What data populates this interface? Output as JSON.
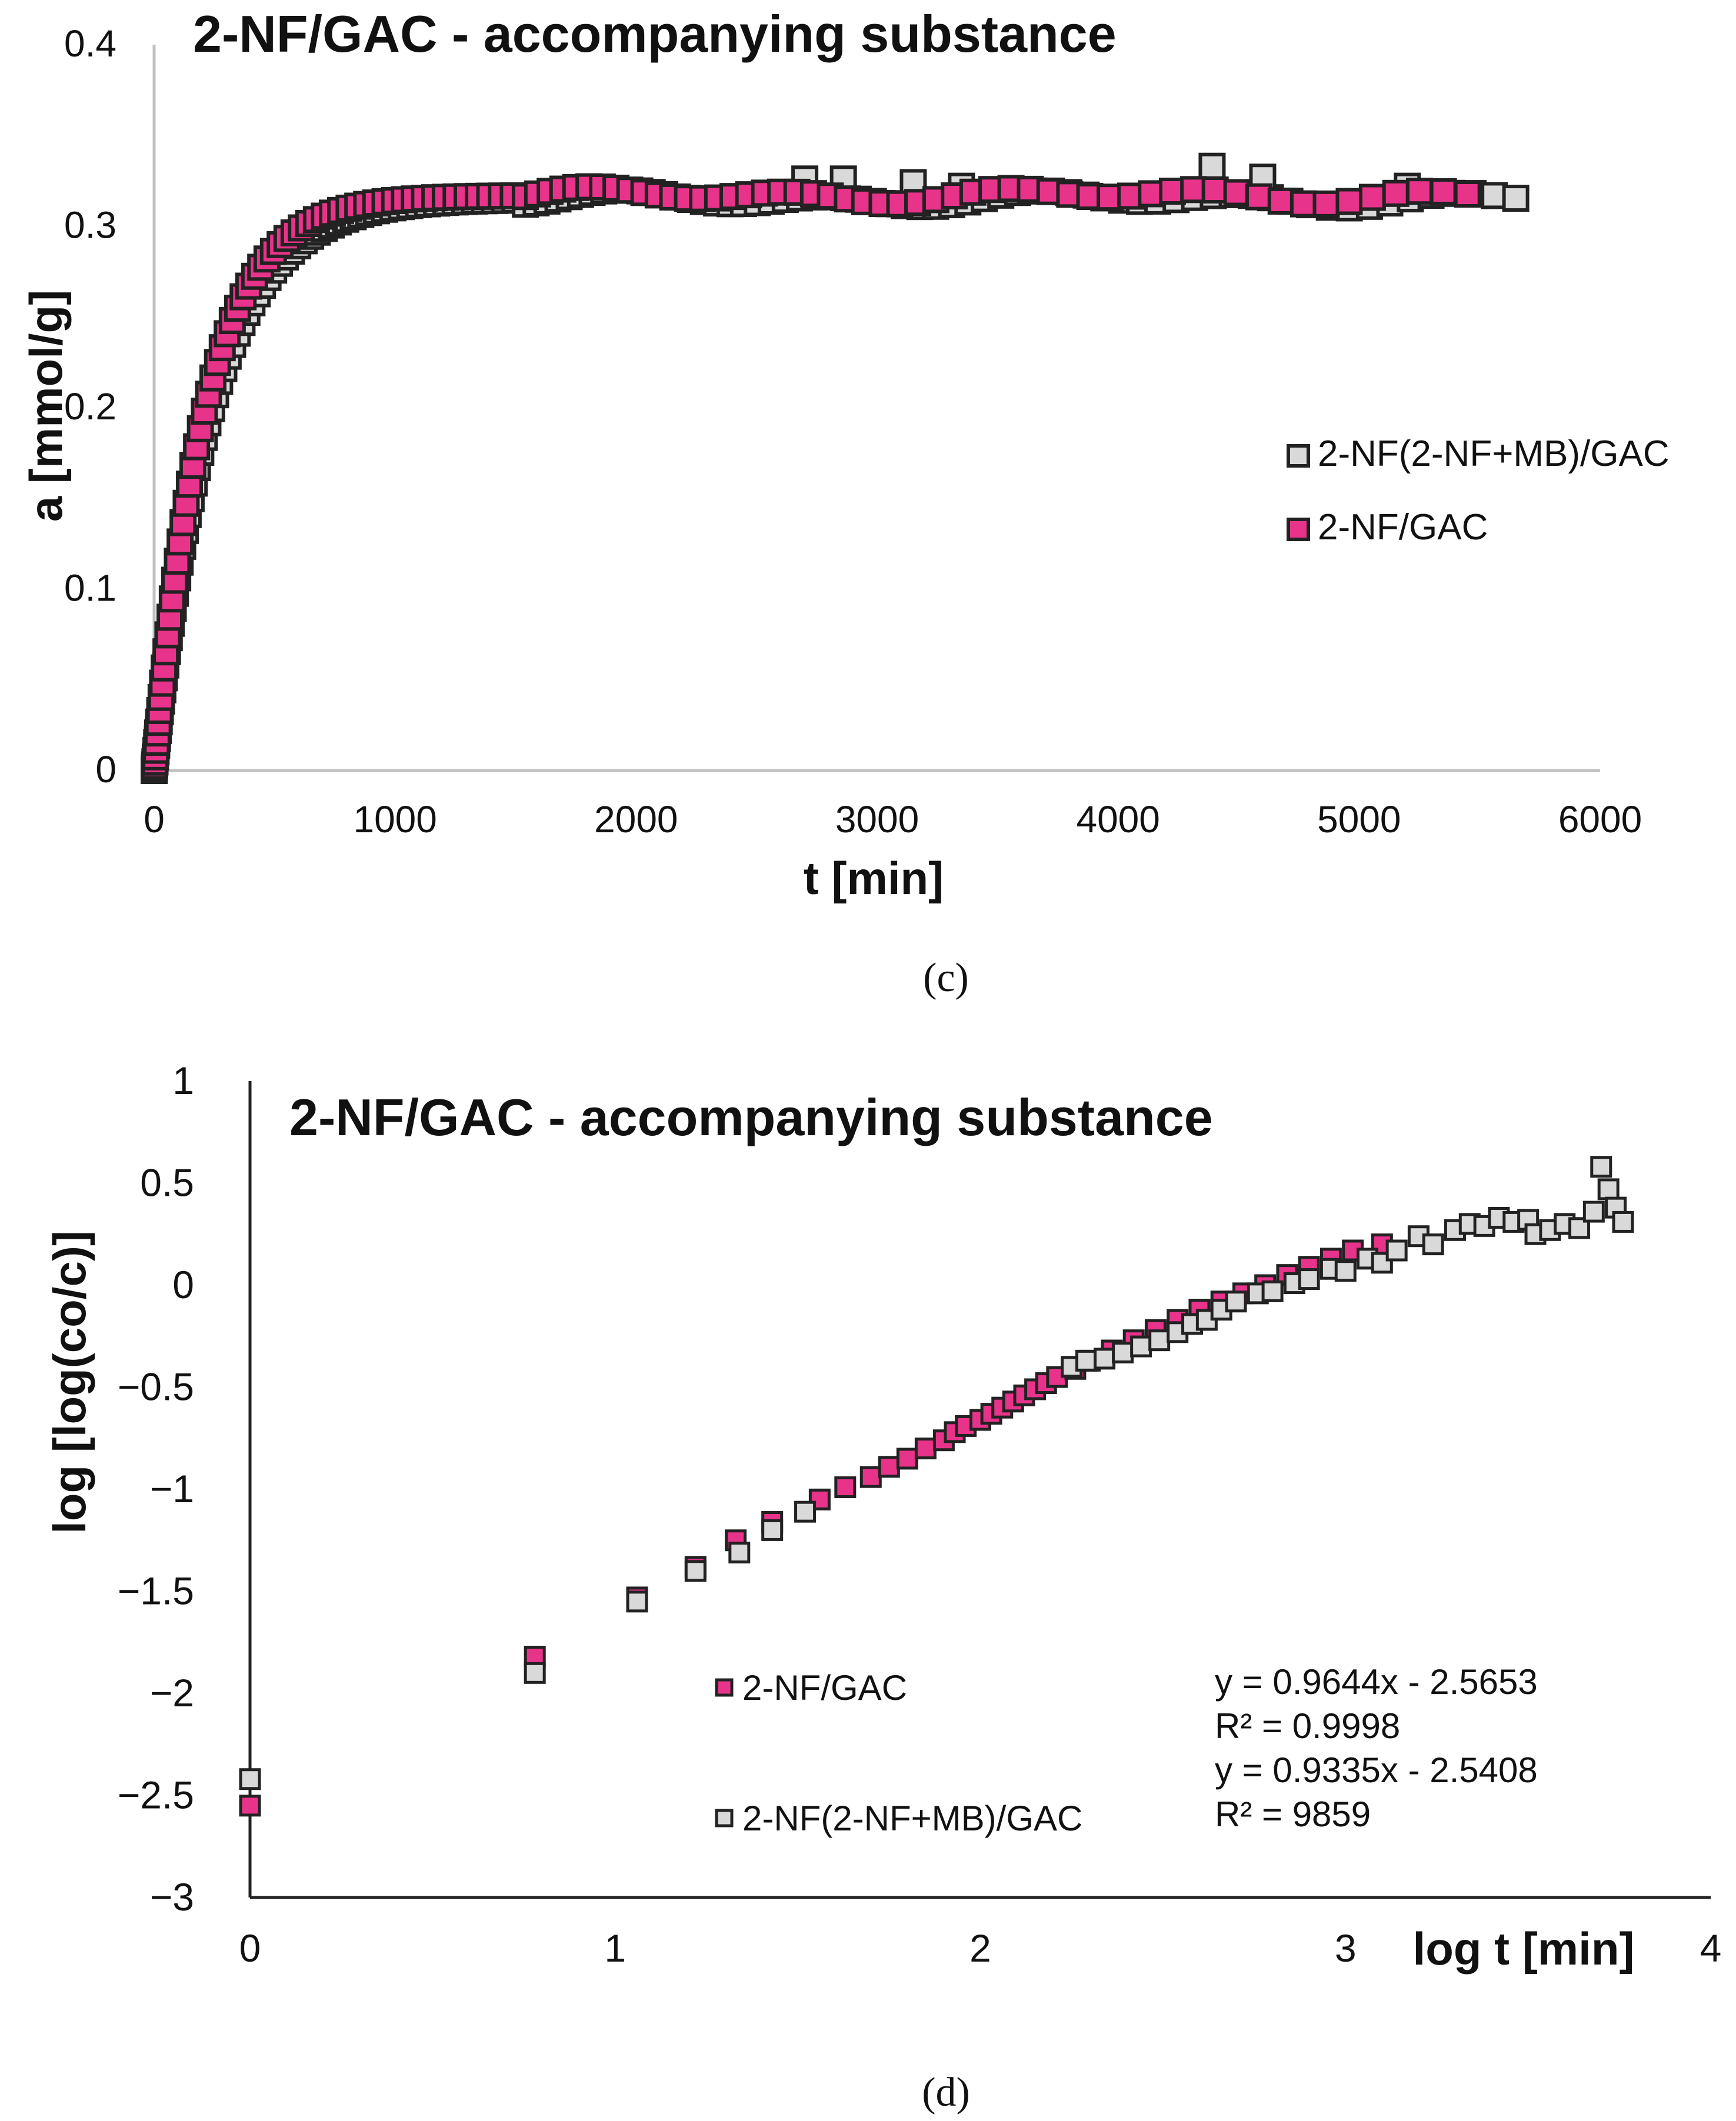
{
  "panels": [
    {
      "caption": "(c)",
      "chart_data": {
        "type": "scatter",
        "title": "2-NF/GAC - accompanying substance",
        "xlabel": "t [min]",
        "ylabel": "a [mmol/g]",
        "xlim": [
          0,
          6000
        ],
        "ylim": [
          0,
          0.4
        ],
        "xticks": [
          0,
          1000,
          2000,
          3000,
          4000,
          5000,
          6000
        ],
        "yticks": [
          0,
          0.1,
          0.2,
          0.3,
          0.4
        ],
        "xtick_labels": [
          "0",
          "1000",
          "2000",
          "3000",
          "4000",
          "5000",
          "6000"
        ],
        "ytick_labels": [
          "0",
          "0.1",
          "0.2",
          "0.3",
          "0.4"
        ],
        "legend": {
          "position": "right",
          "entries": [
            "2-NF(2-NF+MB)/GAC",
            "2-NF/GAC"
          ]
        },
        "series": [
          {
            "name": "2-NF(2-NF+MB)/GAC",
            "color": "#d9d9d9",
            "model": {
              "kind": "saturation",
              "qmax": 0.315,
              "k": 0.0042,
              "tmax": 5650,
              "points": 140
            },
            "extra_points": [
              [
                2700,
                0.326
              ],
              [
                2860,
                0.326
              ],
              [
                4390,
                0.333
              ],
              [
                4600,
                0.327
              ],
              [
                3150,
                0.324
              ],
              [
                3350,
                0.322
              ],
              [
                5200,
                0.322
              ]
            ]
          },
          {
            "name": "2-NF/GAC",
            "color": "#e8338a",
            "model": {
              "kind": "saturation",
              "qmax": 0.317,
              "k": 0.0047,
              "tmax": 5450,
              "points": 120
            },
            "extra_points": []
          }
        ]
      }
    },
    {
      "caption": "(d)",
      "chart_data": {
        "type": "scatter",
        "title": "2-NF/GAC - accompanying substance",
        "xlabel": "log t [min]",
        "ylabel": "log [log(co/c)]",
        "xlim": [
          0,
          4
        ],
        "ylim": [
          -3,
          1
        ],
        "xticks": [
          0,
          1,
          2,
          3,
          4
        ],
        "yticks": [
          -3,
          -2.5,
          -2,
          -1.5,
          -1,
          -0.5,
          0,
          0.5,
          1
        ],
        "xtick_labels": [
          "0",
          "1",
          "2",
          "3",
          "4"
        ],
        "ytick_labels": [
          "−3",
          "−2.5",
          "−2",
          "−1.5",
          "−1",
          "−0.5",
          "0",
          "0.5",
          "1"
        ],
        "legend": {
          "position": "lower-center",
          "entries": [
            "2-NF/GAC",
            "2-NF(2-NF+MB)/GAC"
          ]
        },
        "annotations": [
          "y = 0.9644x - 2.5653",
          "R² = 0.9998",
          "y = 0.9335x - 2.5408",
          "R² = 9859"
        ],
        "series": [
          {
            "name": "2-NF/GAC",
            "color": "#e8338a",
            "points": [
              [
                0,
                -2.55
              ],
              [
                0.78,
                -1.82
              ],
              [
                1.06,
                -1.53
              ],
              [
                1.22,
                -1.38
              ],
              [
                1.33,
                -1.25
              ],
              [
                1.43,
                -1.16
              ],
              [
                1.56,
                -1.05
              ],
              [
                1.63,
                -0.99
              ],
              [
                1.7,
                -0.94
              ],
              [
                1.75,
                -0.89
              ],
              [
                1.8,
                -0.85
              ],
              [
                1.85,
                -0.8
              ],
              [
                1.9,
                -0.76
              ],
              [
                1.93,
                -0.72
              ],
              [
                1.96,
                -0.69
              ],
              [
                2.0,
                -0.66
              ],
              [
                2.03,
                -0.63
              ],
              [
                2.06,
                -0.6
              ],
              [
                2.09,
                -0.57
              ],
              [
                2.12,
                -0.54
              ],
              [
                2.15,
                -0.51
              ],
              [
                2.18,
                -0.48
              ],
              [
                2.21,
                -0.45
              ],
              [
                2.26,
                -0.41
              ],
              [
                2.3,
                -0.37
              ],
              [
                2.36,
                -0.32
              ],
              [
                2.42,
                -0.27
              ],
              [
                2.48,
                -0.22
              ],
              [
                2.54,
                -0.17
              ],
              [
                2.6,
                -0.12
              ],
              [
                2.66,
                -0.08
              ],
              [
                2.72,
                -0.04
              ],
              [
                2.78,
                0.0
              ],
              [
                2.84,
                0.05
              ],
              [
                2.9,
                0.09
              ],
              [
                2.96,
                0.13
              ],
              [
                3.02,
                0.17
              ],
              [
                3.1,
                0.2
              ]
            ]
          },
          {
            "name": "2-NF(2-NF+MB)/GAC",
            "color": "#d9d9d9",
            "points": [
              [
                0,
                -2.42
              ],
              [
                0.78,
                -1.9
              ],
              [
                1.06,
                -1.55
              ],
              [
                1.22,
                -1.4
              ],
              [
                1.34,
                -1.31
              ],
              [
                1.43,
                -1.2
              ],
              [
                1.52,
                -1.11
              ],
              [
                2.25,
                -0.4
              ],
              [
                2.29,
                -0.37
              ],
              [
                2.34,
                -0.36
              ],
              [
                2.39,
                -0.33
              ],
              [
                2.44,
                -0.3
              ],
              [
                2.49,
                -0.27
              ],
              [
                2.54,
                -0.23
              ],
              [
                2.58,
                -0.19
              ],
              [
                2.62,
                -0.17
              ],
              [
                2.66,
                -0.12
              ],
              [
                2.7,
                -0.08
              ],
              [
                2.76,
                -0.04
              ],
              [
                2.8,
                -0.03
              ],
              [
                2.86,
                0.01
              ],
              [
                2.9,
                0.03
              ],
              [
                2.96,
                0.08
              ],
              [
                3.0,
                0.07
              ],
              [
                3.06,
                0.13
              ],
              [
                3.1,
                0.11
              ],
              [
                3.14,
                0.17
              ],
              [
                3.2,
                0.24
              ],
              [
                3.24,
                0.2
              ],
              [
                3.3,
                0.27
              ],
              [
                3.34,
                0.3
              ],
              [
                3.38,
                0.29
              ],
              [
                3.42,
                0.33
              ],
              [
                3.46,
                0.31
              ],
              [
                3.5,
                0.32
              ],
              [
                3.52,
                0.25
              ],
              [
                3.56,
                0.27
              ],
              [
                3.6,
                0.3
              ],
              [
                3.64,
                0.28
              ],
              [
                3.68,
                0.36
              ],
              [
                3.7,
                0.58
              ],
              [
                3.72,
                0.47
              ],
              [
                3.74,
                0.38
              ],
              [
                3.76,
                0.31
              ]
            ]
          }
        ]
      }
    }
  ]
}
